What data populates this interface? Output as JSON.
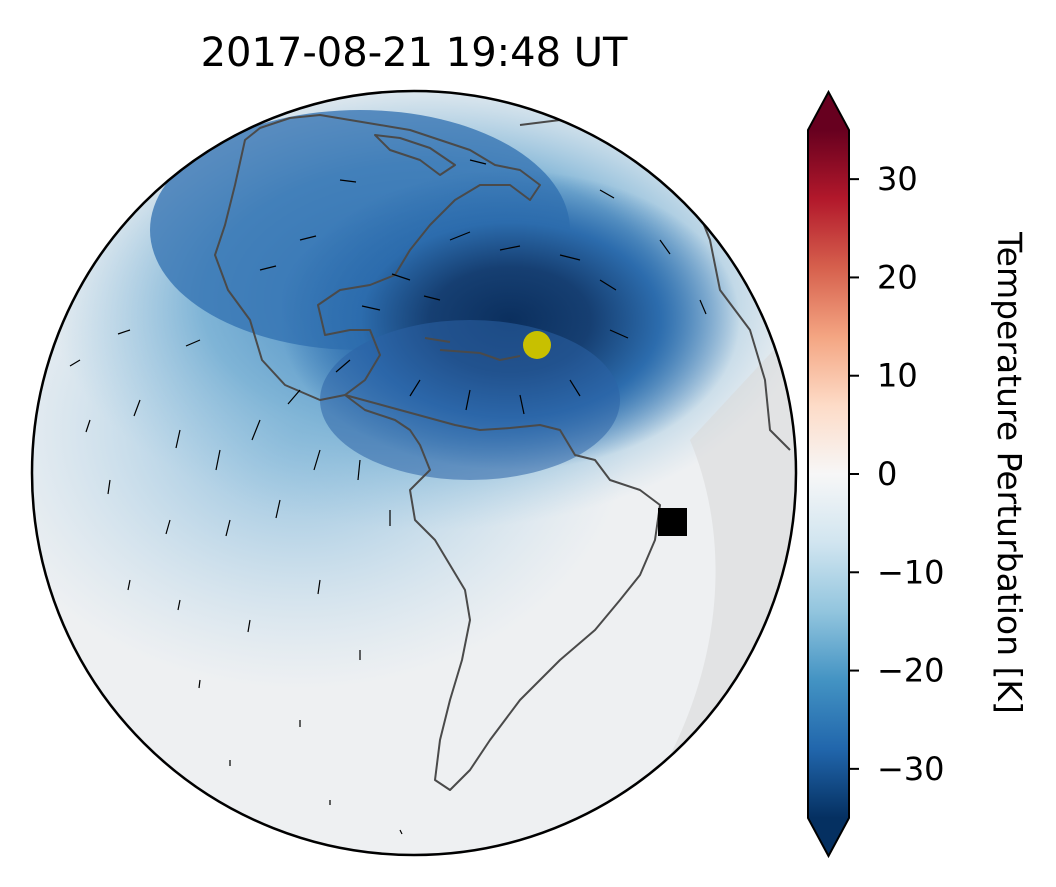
{
  "title": "2017-08-21  19:48 UT",
  "map": {
    "projection": "orthographic",
    "subsolar_marker_color": "#c8c000",
    "station_marker_color": "#000000",
    "coastline_color": "#4a4a4a",
    "night_shade_color": "#d9d9d9"
  },
  "colorbar": {
    "label": "Temperature Perturbation [K]",
    "colormap": "RdBu_r",
    "extend": "both",
    "vmin": -35,
    "vmax": 35,
    "ticks": [
      30,
      20,
      10,
      0,
      -10,
      -20,
      -30
    ],
    "tick_labels": [
      "30",
      "20",
      "10",
      "0",
      "−10",
      "−20",
      "−30"
    ],
    "colors": [
      "#053061",
      "#2166ac",
      "#4393c3",
      "#92c5de",
      "#d1e5f0",
      "#f7f7f7",
      "#fddbc7",
      "#f4a582",
      "#d6604d",
      "#b2182b",
      "#67001f"
    ]
  }
}
